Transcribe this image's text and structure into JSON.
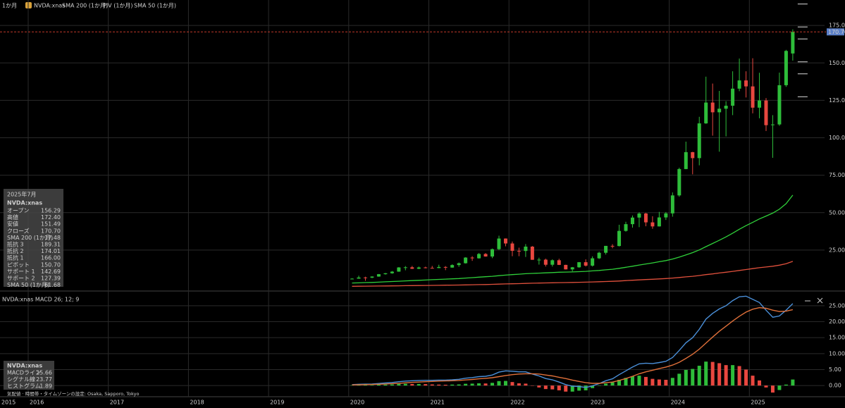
{
  "toolbar": {
    "interval": "1か月",
    "symbol": "NVDA:xnas",
    "pivot_study": "PIV (1か月)"
  },
  "info_panel": {
    "date": "2025年7月",
    "symbol": "NVDA:xnas",
    "rows": [
      {
        "label": "オープン",
        "value": 156.29,
        "value_label": "156.29",
        "color": "#3ddc4a"
      },
      {
        "label": "高値",
        "value": 172.4,
        "value_label": "172.40",
        "color": "#3ddc4a"
      },
      {
        "label": "安値",
        "value": 151.49,
        "value_label": "151.49",
        "color": "#3ddc4a"
      },
      {
        "label": "クローズ",
        "value": 170.7,
        "value_label": "170.70",
        "color": "#3ddc4a"
      },
      {
        "label": "SMA 200 (1か月)",
        "value": 17.48,
        "value_label": "17.48",
        "color": "#e8473f"
      },
      {
        "label": "抵抗 3",
        "value": 189.31,
        "value_label": "189.31",
        "color": "#e6e6e6"
      },
      {
        "label": "抵抗 2",
        "value": 174.01,
        "value_label": "174.01",
        "color": "#e6e6e6"
      },
      {
        "label": "抵抗 1",
        "value": 166,
        "value_label": "166.00",
        "color": "#e6e6e6"
      },
      {
        "label": "ピボット",
        "value": 150.7,
        "value_label": "150.70",
        "color": "#3ddc4a"
      },
      {
        "label": "サポート 1",
        "value": 142.69,
        "value_label": "142.69",
        "color": "#3ddc4a"
      },
      {
        "label": "サポート 2",
        "value": 127.39,
        "value_label": "127.39",
        "color": "#3ddc4a"
      },
      {
        "label": "SMA 50 (1か月)",
        "value": 61.68,
        "value_label": "61.68",
        "color": "#3ddc4a"
      }
    ]
  },
  "macd_panel": {
    "symbol": "NVDA:xnas",
    "values": [
      {
        "value": 25.66,
        "value_label": "25.66"
      },
      {
        "value": 23.77,
        "value_label": "23.77"
      },
      {
        "value": 1.89,
        "value_label": "1.89"
      }
    ]
  },
  "footnote": "気配値 · 時間帯・タイムゾーンの設定: Osaka, Sapporo, Tokyo",
  "chart_data": [
    {
      "type": "candlestick",
      "x": [
        "2020-01",
        "2020-02",
        "2020-03",
        "2020-04",
        "2020-05",
        "2020-06",
        "2020-07",
        "2020-08",
        "2020-09",
        "2020-10",
        "2020-11",
        "2020-12",
        "2021-01",
        "2021-02",
        "2021-03",
        "2021-04",
        "2021-05",
        "2021-06",
        "2021-07",
        "2021-08",
        "2021-09",
        "2021-10",
        "2021-11",
        "2021-12",
        "2022-01",
        "2022-02",
        "2022-03",
        "2022-04",
        "2022-05",
        "2022-06",
        "2022-07",
        "2022-08",
        "2022-09",
        "2022-10",
        "2022-11",
        "2022-12",
        "2023-01",
        "2023-02",
        "2023-03",
        "2023-04",
        "2023-05",
        "2023-06",
        "2023-07",
        "2023-08",
        "2023-09",
        "2023-10",
        "2023-11",
        "2023-12",
        "2024-01",
        "2024-02",
        "2024-03",
        "2024-04",
        "2024-05",
        "2024-06",
        "2024-07",
        "2024-08",
        "2024-09",
        "2024-10",
        "2024-11",
        "2024-12",
        "2025-01",
        "2025-02",
        "2025-03",
        "2025-04",
        "2025-05",
        "2025-06",
        "2025-07"
      ],
      "open": [
        5.9,
        5.9,
        6.7,
        6.6,
        7.3,
        8.9,
        9.5,
        10.6,
        13.4,
        13.5,
        12.5,
        13.4,
        13.1,
        13.0,
        13.7,
        13.3,
        15.0,
        16.2,
        20.0,
        19.5,
        22.4,
        20.7,
        25.6,
        32.7,
        29.4,
        24.5,
        24.4,
        27.3,
        18.5,
        18.6,
        15.2,
        18.2,
        15.1,
        12.1,
        13.5,
        16.9,
        14.6,
        19.5,
        23.2,
        27.8,
        27.7,
        37.8,
        42.3,
        46.7,
        49.4,
        43.5,
        40.8,
        46.8,
        49.5,
        61.5,
        79.1,
        90.4,
        86.4,
        109.6,
        123.5,
        117.0,
        119.4,
        121.4,
        132.8,
        138.3,
        134.3,
        120.1,
        124.9,
        108.4,
        108.9,
        135.1,
        156.29
      ],
      "high": [
        6.2,
        7.9,
        7.2,
        7.5,
        9.0,
        9.7,
        11.0,
        13.6,
        14.3,
        14.4,
        14.0,
        13.9,
        14.4,
        15.2,
        14.3,
        15.5,
        16.7,
        20.2,
        20.9,
        23.0,
        23.0,
        26.0,
        34.6,
        32.8,
        30.7,
        26.6,
        29.0,
        27.7,
        19.9,
        19.3,
        18.8,
        19.2,
        15.2,
        13.7,
        17.0,
        18.8,
        20.8,
        23.9,
        27.8,
        28.9,
        41.9,
        43.9,
        48.1,
        50.3,
        49.9,
        47.6,
        50.5,
        50.4,
        63.5,
        80.0,
        97.4,
        90.6,
        114.0,
        140.8,
        136.2,
        131.3,
        124.4,
        144.4,
        152.9,
        144.4,
        153.1,
        143.4,
        126.5,
        115.1,
        143.5,
        158.7,
        172.4
      ],
      "low": [
        5.8,
        5.9,
        4.5,
        6.2,
        7.2,
        8.6,
        9.2,
        10.5,
        11.5,
        12.4,
        12.3,
        12.8,
        12.8,
        12.9,
        11.6,
        13.2,
        13.8,
        16.0,
        17.8,
        19.3,
        20.6,
        19.6,
        25.0,
        27.5,
        20.9,
        20.9,
        20.4,
        18.5,
        15.3,
        14.0,
        14.0,
        15.0,
        12.0,
        10.8,
        13.2,
        14.0,
        14.0,
        19.0,
        22.0,
        26.2,
        27.4,
        37.3,
        40.0,
        40.3,
        40.9,
        39.2,
        40.7,
        45.1,
        47.3,
        60.6,
        79.0,
        75.6,
        81.6,
        109.3,
        101.4,
        90.7,
        100.9,
        115.1,
        131.1,
        126.9,
        116.3,
        113.0,
        104.5,
        86.6,
        108.0,
        134.0,
        151.49
      ],
      "close": [
        5.9,
        6.7,
        6.6,
        7.3,
        8.9,
        9.5,
        10.6,
        13.4,
        13.5,
        12.5,
        13.4,
        13.1,
        13.0,
        13.7,
        13.3,
        15.0,
        16.2,
        20.0,
        19.5,
        22.4,
        20.7,
        25.6,
        32.7,
        29.4,
        24.5,
        24.4,
        27.3,
        18.5,
        18.6,
        15.2,
        18.2,
        15.1,
        12.1,
        13.5,
        16.9,
        14.6,
        19.5,
        23.2,
        27.8,
        27.7,
        37.8,
        42.3,
        46.7,
        49.4,
        43.5,
        40.8,
        46.8,
        49.5,
        61.5,
        79.1,
        90.4,
        86.4,
        109.6,
        123.5,
        117.0,
        119.4,
        121.4,
        132.8,
        138.3,
        134.3,
        120.1,
        124.9,
        108.4,
        108.9,
        135.1,
        158.0,
        170.7
      ],
      "up_color": "#2ebd3a",
      "down_color": "#e8473f",
      "series": [
        {
          "name": "SMA 200 (1か月)",
          "color": "#e0503c",
          "values": [
            0.8,
            0.85,
            0.9,
            0.95,
            1.0,
            1.05,
            1.1,
            1.15,
            1.2,
            1.25,
            1.3,
            1.36,
            1.42,
            1.48,
            1.54,
            1.6,
            1.67,
            1.75,
            1.83,
            1.92,
            2.0,
            2.1,
            2.25,
            2.4,
            2.5,
            2.6,
            2.75,
            2.85,
            2.95,
            3.05,
            3.15,
            3.25,
            3.3,
            3.4,
            3.5,
            3.6,
            3.7,
            3.85,
            4.0,
            4.15,
            4.35,
            4.6,
            4.85,
            5.1,
            5.3,
            5.5,
            5.75,
            6.0,
            6.3,
            6.7,
            7.1,
            7.5,
            8.0,
            8.6,
            9.1,
            9.7,
            10.2,
            10.8,
            11.4,
            12.0,
            12.6,
            13.2,
            13.7,
            14.2,
            14.9,
            15.9,
            17.48
          ]
        },
        {
          "name": "SMA 50 (1か月)",
          "color": "#2fd03a",
          "values": [
            3.0,
            3.1,
            3.3,
            3.4,
            3.6,
            3.8,
            4.0,
            4.2,
            4.4,
            4.6,
            4.8,
            5.0,
            5.2,
            5.4,
            5.6,
            5.8,
            6.0,
            6.3,
            6.6,
            6.9,
            7.2,
            7.5,
            7.9,
            8.3,
            8.6,
            8.9,
            9.2,
            9.4,
            9.6,
            9.8,
            10.0,
            10.2,
            10.3,
            10.4,
            10.6,
            10.8,
            11.1,
            11.4,
            11.8,
            12.2,
            12.8,
            13.5,
            14.2,
            15.0,
            15.7,
            16.4,
            17.2,
            18.0,
            19.0,
            20.3,
            21.8,
            23.3,
            25.1,
            27.3,
            29.4,
            31.6,
            33.8,
            36.3,
            38.9,
            41.3,
            43.5,
            45.8,
            47.7,
            49.7,
            52.3,
            56.0,
            61.68
          ]
        }
      ],
      "ylim": [
        0,
        192
      ],
      "yticks": [
        {
          "value": 25,
          "label": "25.00"
        },
        {
          "value": 50,
          "label": "50.00"
        },
        {
          "value": 75,
          "label": "75.00"
        },
        {
          "value": 100,
          "label": "100.00"
        },
        {
          "value": 125,
          "label": "125.00"
        },
        {
          "value": 150,
          "label": "150.00"
        },
        {
          "value": 175,
          "label": "175.00"
        }
      ],
      "xlim": [
        2015.65,
        2026.2
      ],
      "xticks": [
        2015,
        2016,
        2017,
        2018,
        2019,
        2020,
        2021,
        2022,
        2023,
        2024,
        2025
      ],
      "grid": true
    },
    {
      "type": "macd",
      "title": "NVDA:xnas  MACD 26; 12; 9",
      "x": [
        "2020-01",
        "2020-02",
        "2020-03",
        "2020-04",
        "2020-05",
        "2020-06",
        "2020-07",
        "2020-08",
        "2020-09",
        "2020-10",
        "2020-11",
        "2020-12",
        "2021-01",
        "2021-02",
        "2021-03",
        "2021-04",
        "2021-05",
        "2021-06",
        "2021-07",
        "2021-08",
        "2021-09",
        "2021-10",
        "2021-11",
        "2021-12",
        "2022-01",
        "2022-02",
        "2022-03",
        "2022-04",
        "2022-05",
        "2022-06",
        "2022-07",
        "2022-08",
        "2022-09",
        "2022-10",
        "2022-11",
        "2022-12",
        "2023-01",
        "2023-02",
        "2023-03",
        "2023-04",
        "2023-05",
        "2023-06",
        "2023-07",
        "2023-08",
        "2023-09",
        "2023-10",
        "2023-11",
        "2023-12",
        "2024-01",
        "2024-02",
        "2024-03",
        "2024-04",
        "2024-05",
        "2024-06",
        "2024-07",
        "2024-08",
        "2024-09",
        "2024-10",
        "2024-11",
        "2024-12",
        "2025-01",
        "2025-02",
        "2025-03",
        "2025-04",
        "2025-05",
        "2025-06",
        "2025-07"
      ],
      "up_color": "#2ebd3a",
      "down_color": "#e8473f",
      "series": [
        {
          "name": "MACDライン",
          "color": "#4a8fd8",
          "values": [
            0.3,
            0.4,
            0.45,
            0.5,
            0.65,
            0.8,
            0.95,
            1.2,
            1.4,
            1.5,
            1.6,
            1.65,
            1.65,
            1.7,
            1.7,
            1.8,
            1.95,
            2.3,
            2.5,
            2.8,
            2.9,
            3.3,
            4.2,
            4.6,
            4.5,
            4.3,
            4.3,
            3.6,
            3.0,
            2.2,
            1.8,
            1.1,
            0.3,
            -0.2,
            -0.3,
            -0.6,
            -0.1,
            0.6,
            1.5,
            2.1,
            3.4,
            4.6,
            5.8,
            6.8,
            7.0,
            6.9,
            7.2,
            7.6,
            8.8,
            11.0,
            13.4,
            15.0,
            17.6,
            20.8,
            22.6,
            24.0,
            25.0,
            26.6,
            27.8,
            28.0,
            27.0,
            26.0,
            23.6,
            21.4,
            21.8,
            23.6,
            25.66
          ]
        },
        {
          "name": "シグナル線",
          "color": "#e0703a",
          "values": [
            0.2,
            0.25,
            0.3,
            0.35,
            0.4,
            0.5,
            0.6,
            0.7,
            0.85,
            1.0,
            1.1,
            1.2,
            1.3,
            1.4,
            1.45,
            1.5,
            1.6,
            1.75,
            1.9,
            2.1,
            2.25,
            2.45,
            2.8,
            3.15,
            3.4,
            3.6,
            3.7,
            3.7,
            3.6,
            3.3,
            3.0,
            2.6,
            2.2,
            1.7,
            1.3,
            0.9,
            0.7,
            0.7,
            0.9,
            1.1,
            1.6,
            2.2,
            2.9,
            3.7,
            4.3,
            4.8,
            5.3,
            5.8,
            6.4,
            7.3,
            8.5,
            9.8,
            11.4,
            13.3,
            15.2,
            17.0,
            18.6,
            20.2,
            21.7,
            23.0,
            23.9,
            24.4,
            24.2,
            23.6,
            23.2,
            23.3,
            23.77
          ]
        },
        {
          "name": "ヒストグラム",
          "color": "#3ddc4a",
          "values": [
            0.1,
            0.15,
            0.15,
            0.15,
            0.25,
            0.3,
            0.35,
            0.5,
            0.55,
            0.5,
            0.5,
            0.45,
            0.35,
            0.3,
            0.25,
            0.3,
            0.35,
            0.55,
            0.6,
            0.7,
            0.65,
            0.85,
            1.4,
            1.45,
            1.1,
            0.7,
            0.6,
            -0.1,
            -0.6,
            -1.1,
            -1.2,
            -1.5,
            -1.9,
            -1.9,
            -1.6,
            -1.5,
            -0.8,
            -0.1,
            0.6,
            1.0,
            1.8,
            2.4,
            2.9,
            3.1,
            2.7,
            2.1,
            1.9,
            1.8,
            2.4,
            3.7,
            4.9,
            5.2,
            6.2,
            7.5,
            7.4,
            7.0,
            6.4,
            6.4,
            6.1,
            5.0,
            3.1,
            1.6,
            -0.6,
            -2.2,
            -1.4,
            0.3,
            1.89
          ]
        }
      ],
      "ylim": [
        -3.5,
        28.5
      ],
      "yticks": [
        {
          "value": 0,
          "label": "0.00"
        },
        {
          "value": 5,
          "label": "5.00"
        },
        {
          "value": 10,
          "label": "10.00"
        },
        {
          "value": 15,
          "label": "15.00"
        },
        {
          "value": 20,
          "label": "20.00"
        },
        {
          "value": 25,
          "label": "25.00"
        }
      ],
      "grid": true
    }
  ]
}
